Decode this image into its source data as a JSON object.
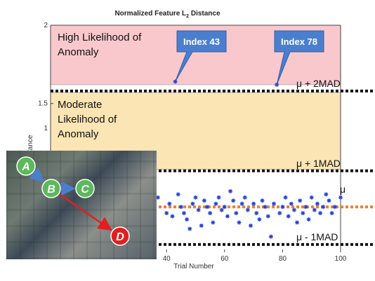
{
  "chart_data": {
    "type": "scatter",
    "title": "Normalized Feature L",
    "title_sub": "2",
    "title_end": " Distance",
    "xlabel": "Trial Number",
    "ylabel": "Distance",
    "xlim": [
      0,
      100
    ],
    "ylim": [
      0.55,
      2
    ],
    "x_ticks": [
      40,
      60,
      80,
      100
    ],
    "y_ticks": [
      1.5,
      2
    ],
    "y_tick_labels": [
      "1.5",
      "2"
    ],
    "x_tick_partial": "1",
    "bands": [
      {
        "label_lines": [
          "High Likelihood of",
          "Anomaly"
        ],
        "y_from": 1.62,
        "y_to": 2.0,
        "color": "#f9c8cd"
      },
      {
        "label_lines": [
          "Moderate",
          "Likelihood of",
          "Anomaly"
        ],
        "y_from": 1.08,
        "y_to": 1.57,
        "color": "#fbe5b4"
      }
    ],
    "reference_lines": [
      {
        "label": "μ + 2MAD",
        "y": 1.58,
        "style": "dotted",
        "color": "#111111"
      },
      {
        "label": "μ + 1MAD",
        "y": 1.07,
        "style": "dotted",
        "color": "#111111"
      },
      {
        "label": "μ",
        "y": 0.84,
        "style": "dotted",
        "color": "#ed7d31"
      },
      {
        "label": "μ - 1MAD",
        "y": 0.6,
        "style": "dotted",
        "color": "#111111"
      }
    ],
    "annotations": [
      {
        "label": "Index 43",
        "x": 43,
        "y": 1.64
      },
      {
        "label": "Index 78",
        "x": 78,
        "y": 1.62
      }
    ],
    "series": [
      {
        "marker_color": "#1f3fd8",
        "points": [
          [
            2,
            1.02
          ],
          [
            19,
            1.03
          ],
          [
            37,
            0.9
          ],
          [
            40,
            0.8
          ],
          [
            41,
            0.86
          ],
          [
            42,
            0.78
          ],
          [
            43,
            1.64
          ],
          [
            44,
            0.92
          ],
          [
            45,
            0.84
          ],
          [
            46,
            0.8
          ],
          [
            47,
            0.76
          ],
          [
            48,
            0.7
          ],
          [
            49,
            0.86
          ],
          [
            50,
            0.9
          ],
          [
            51,
            0.82
          ],
          [
            52,
            0.72
          ],
          [
            53,
            0.88
          ],
          [
            54,
            0.84
          ],
          [
            55,
            0.8
          ],
          [
            56,
            0.74
          ],
          [
            57,
            0.86
          ],
          [
            58,
            0.9
          ],
          [
            59,
            0.82
          ],
          [
            60,
            0.84
          ],
          [
            61,
            0.78
          ],
          [
            62,
            0.94
          ],
          [
            63,
            0.88
          ],
          [
            64,
            0.8
          ],
          [
            65,
            0.74
          ],
          [
            66,
            0.86
          ],
          [
            67,
            0.9
          ],
          [
            68,
            0.82
          ],
          [
            69,
            0.72
          ],
          [
            70,
            0.86
          ],
          [
            71,
            0.8
          ],
          [
            72,
            0.76
          ],
          [
            73,
            0.88
          ],
          [
            74,
            0.84
          ],
          [
            75,
            0.78
          ],
          [
            76,
            0.65
          ],
          [
            77,
            0.86
          ],
          [
            78,
            1.62
          ],
          [
            79,
            0.8
          ],
          [
            80,
            0.84
          ],
          [
            81,
            0.9
          ],
          [
            82,
            0.78
          ],
          [
            83,
            0.86
          ],
          [
            84,
            0.82
          ],
          [
            85,
            0.74
          ],
          [
            86,
            0.88
          ],
          [
            87,
            0.8
          ],
          [
            88,
            0.84
          ],
          [
            89,
            0.76
          ],
          [
            90,
            0.9
          ],
          [
            91,
            0.82
          ],
          [
            92,
            0.86
          ],
          [
            93,
            0.8
          ],
          [
            94,
            0.84
          ],
          [
            95,
            0.92
          ],
          [
            96,
            0.88
          ],
          [
            97,
            0.8
          ],
          [
            98,
            0.84
          ],
          [
            100,
            0.9
          ]
        ]
      }
    ]
  },
  "inset": {
    "nodes": [
      {
        "label": "A",
        "color": "#5cb85c"
      },
      {
        "label": "B",
        "color": "#5cb85c"
      },
      {
        "label": "C",
        "color": "#5cb85c"
      },
      {
        "label": "D",
        "color": "#e02020"
      }
    ],
    "edge_color_normal": "#4a7fd0",
    "edge_color_anomaly": "#e02020"
  }
}
